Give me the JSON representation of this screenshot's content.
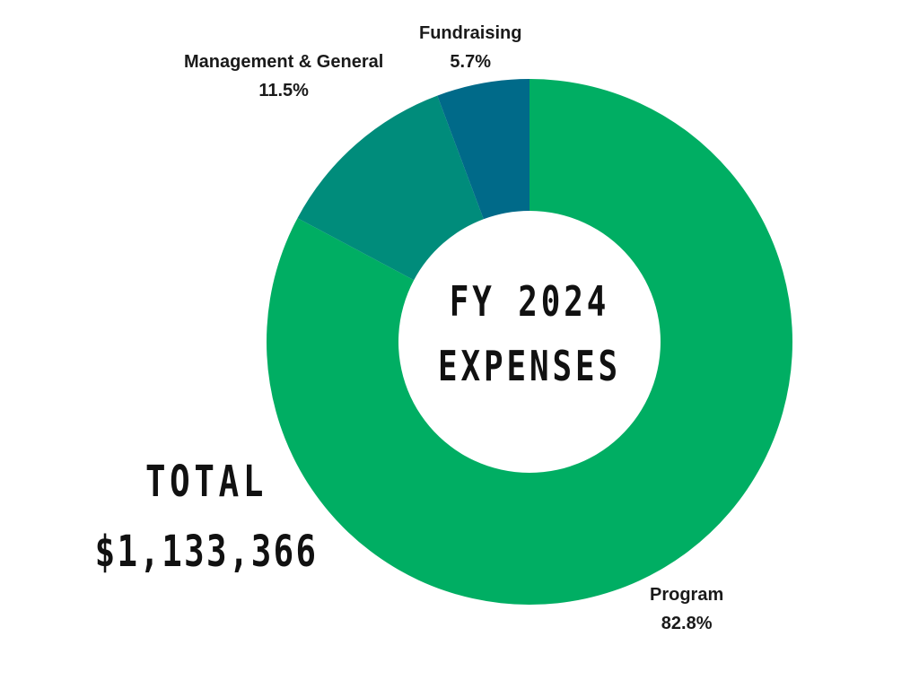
{
  "chart_data": {
    "type": "pie",
    "title_lines": [
      "FY 2024",
      "EXPENSES"
    ],
    "total_label": "TOTAL",
    "total_value": "$1,133,366",
    "slices": [
      {
        "label": "Program",
        "value": 82.8,
        "value_text": "82.8%",
        "color": "#00ae63"
      },
      {
        "label": "Management & General",
        "value": 11.5,
        "value_text": "11.5%",
        "color": "#008c7b"
      },
      {
        "label": "Fundraising",
        "value": 5.7,
        "value_text": "5.7%",
        "color": "#006a89"
      }
    ],
    "donut": true,
    "start": "12 o'clock",
    "direction": "clockwise",
    "legend": "none"
  }
}
